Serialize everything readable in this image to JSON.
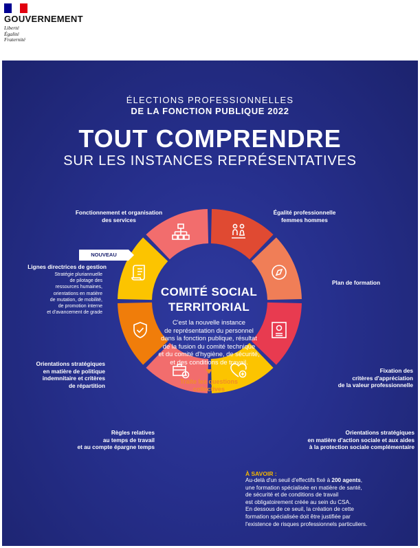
{
  "logo": {
    "title": "GOUVERNEMENT",
    "motto": [
      "Liberté",
      "Égalité",
      "Fraternité"
    ],
    "flag_colors": [
      "#000091",
      "#ffffff",
      "#e1000f"
    ]
  },
  "header": {
    "line1": "ÉLECTIONS PROFESSIONNELLES",
    "line2": "DE LA FONCTION PUBLIQUE 2022",
    "title": "TOUT COMPRENDRE",
    "subtitle": "SUR LES INSTANCES REPRÉSENTATIVES"
  },
  "center": {
    "title_line1": "COMITÉ SOCIAL",
    "title_line2": "TERRITORIAL",
    "text_lines": [
      "C'est la nouvelle instance",
      "de représentation du personnel",
      "dans la fonction publique, résultat",
      "de la fusion du comité technique",
      "et du comité d'hygiène, de sécurité,",
      "et des conditions de travail."
    ],
    "cta_line1": "Traite les questions",
    "cta_line2": "collectives"
  },
  "badge": "NOUVEAU",
  "segments": [
    {
      "icon": "org-chart-icon",
      "color": "#f26d6d",
      "label": [
        "Fonctionnement et organisation",
        "des services"
      ]
    },
    {
      "icon": "equality-icon",
      "color": "#e04a32",
      "label": [
        "Égalité professionnelle",
        "femmes hommes"
      ]
    },
    {
      "icon": "compass-icon",
      "color": "#f07e57",
      "label": [
        "Plan de formation"
      ]
    },
    {
      "icon": "certificate-icon",
      "color": "#e83b50",
      "label": [
        "Fixation des",
        "critères d'appréciation",
        "de la valeur professionnelle"
      ]
    },
    {
      "icon": "heart-plus-icon",
      "color": "#fcc400",
      "label": [
        "Orientations stratégiques",
        "en matière d'action sociale et aux aides",
        "à la protection sociale complémentaire"
      ]
    },
    {
      "icon": "briefcase-clock-icon",
      "color": "#f26d6d",
      "label": [
        "Règles relatives",
        "au temps de travail",
        "et au compte épargne temps"
      ]
    },
    {
      "icon": "shield-check-icon",
      "color": "#f07d0a",
      "label": [
        "Orientations stratégiques",
        "en matière de politique",
        "indemnitaire et critères",
        "de répartition"
      ]
    },
    {
      "icon": "document-scroll-icon",
      "color": "#fcc400",
      "label": [
        "Lignes directrices de gestion"
      ],
      "sublabel": [
        "Stratégie pluriannuelle",
        "de pilotage des",
        "ressources humaines,",
        "orientations en matière",
        "de mutation, de mobilité,",
        "de promotion interne",
        "et d'avancement de grade"
      ]
    }
  ],
  "savoir": {
    "heading": "À SAVOIR :",
    "line1_pre": "Au-delà d'un seuil d'effectifs fixé à ",
    "line1_bold": "200 agents",
    "line1_post": ",",
    "lines": [
      "une formation spécialisée en matière de santé,",
      "de sécurité et de conditions de travail",
      "est obligatoirement créée au sein du CSA.",
      "En dessous de ce seuil, la création de cette",
      "formation spécialisée doit être justifiée par",
      "l'existence de risques professionnels particuliers."
    ]
  },
  "colors": {
    "background_top": "#2f3aa0",
    "background_edge": "#1c236e",
    "accent_orange": "#f28c28",
    "accent_yellow": "#f5b800"
  }
}
